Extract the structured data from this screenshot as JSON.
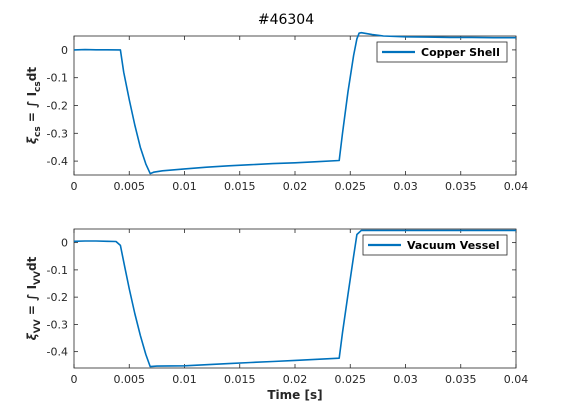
{
  "figure_title": "#46304",
  "chart_data": [
    {
      "type": "line",
      "xlim": [
        0,
        0.04
      ],
      "ylim": [
        -0.45,
        0.05
      ],
      "x_ticks": [
        0,
        0.005,
        0.01,
        0.015,
        0.02,
        0.025,
        0.03,
        0.035,
        0.04
      ],
      "x_tick_labels": [
        "0",
        "0.005",
        "0.01",
        "0.015",
        "0.02",
        "0.025",
        "0.03",
        "0.035",
        "0.04"
      ],
      "y_ticks": [
        0,
        -0.1,
        -0.2,
        -0.3,
        -0.4
      ],
      "y_tick_labels": [
        "0",
        "-0.1",
        "-0.2",
        "-0.3",
        "-0.4"
      ],
      "ylabel": {
        "main": "ξ",
        "sub1": "cs",
        "mid": " = ∫ I",
        "sub2": "cs",
        "end": "dt"
      },
      "xlabel": "",
      "legend_position": "top-right",
      "grid": false,
      "series": [
        {
          "name": "Copper Shell",
          "color": "#0072BD",
          "x": [
            0,
            0.001,
            0.002,
            0.003,
            0.0042,
            0.0045,
            0.005,
            0.0055,
            0.006,
            0.0065,
            0.0069,
            0.0072,
            0.008,
            0.01,
            0.012,
            0.014,
            0.016,
            0.018,
            0.02,
            0.022,
            0.024,
            0.0243,
            0.0248,
            0.0253,
            0.0256,
            0.0258,
            0.026,
            0.027,
            0.028,
            0.03,
            0.032,
            0.034,
            0.036,
            0.038,
            0.04
          ],
          "y": [
            0,
            0.001,
            0.0005,
            0.0003,
            0.0,
            -0.08,
            -0.18,
            -0.27,
            -0.35,
            -0.41,
            -0.445,
            -0.44,
            -0.435,
            -0.428,
            -0.422,
            -0.417,
            -0.413,
            -0.409,
            -0.406,
            -0.402,
            -0.398,
            -0.3,
            -0.15,
            -0.02,
            0.04,
            0.06,
            0.062,
            0.055,
            0.05,
            0.047,
            0.046,
            0.045,
            0.045,
            0.044,
            0.044
          ]
        }
      ]
    },
    {
      "type": "line",
      "xlim": [
        0,
        0.04
      ],
      "ylim": [
        -0.46,
        0.05
      ],
      "x_ticks": [
        0,
        0.005,
        0.01,
        0.015,
        0.02,
        0.025,
        0.03,
        0.035,
        0.04
      ],
      "x_tick_labels": [
        "0",
        "0.005",
        "0.01",
        "0.015",
        "0.02",
        "0.025",
        "0.03",
        "0.035",
        "0.04"
      ],
      "y_ticks": [
        0,
        -0.1,
        -0.2,
        -0.3,
        -0.4
      ],
      "y_tick_labels": [
        "0",
        "-0.1",
        "-0.2",
        "-0.3",
        "-0.4"
      ],
      "ylabel": {
        "main": "ξ",
        "sub1": "VV",
        "mid": " = ∫ I",
        "sub2": "VV",
        "end": "dt"
      },
      "xlabel": "Time [s]",
      "legend_position": "top-right",
      "grid": false,
      "series": [
        {
          "name": "Vacuum Vessel",
          "color": "#0072BD",
          "x": [
            0,
            0.001,
            0.002,
            0.003,
            0.0038,
            0.0042,
            0.0046,
            0.005,
            0.0055,
            0.006,
            0.0065,
            0.0069,
            0.0075,
            0.01,
            0.012,
            0.014,
            0.016,
            0.018,
            0.02,
            0.022,
            0.024,
            0.0243,
            0.0248,
            0.0253,
            0.0256,
            0.026,
            0.027,
            0.03,
            0.035,
            0.04
          ],
          "y": [
            0.005,
            0.006,
            0.006,
            0.005,
            0.004,
            -0.01,
            -0.09,
            -0.17,
            -0.26,
            -0.34,
            -0.41,
            -0.455,
            -0.453,
            -0.452,
            -0.448,
            -0.444,
            -0.44,
            -0.436,
            -0.432,
            -0.428,
            -0.424,
            -0.33,
            -0.19,
            -0.05,
            0.03,
            0.045,
            0.045,
            0.045,
            0.045,
            0.045
          ]
        }
      ]
    }
  ]
}
